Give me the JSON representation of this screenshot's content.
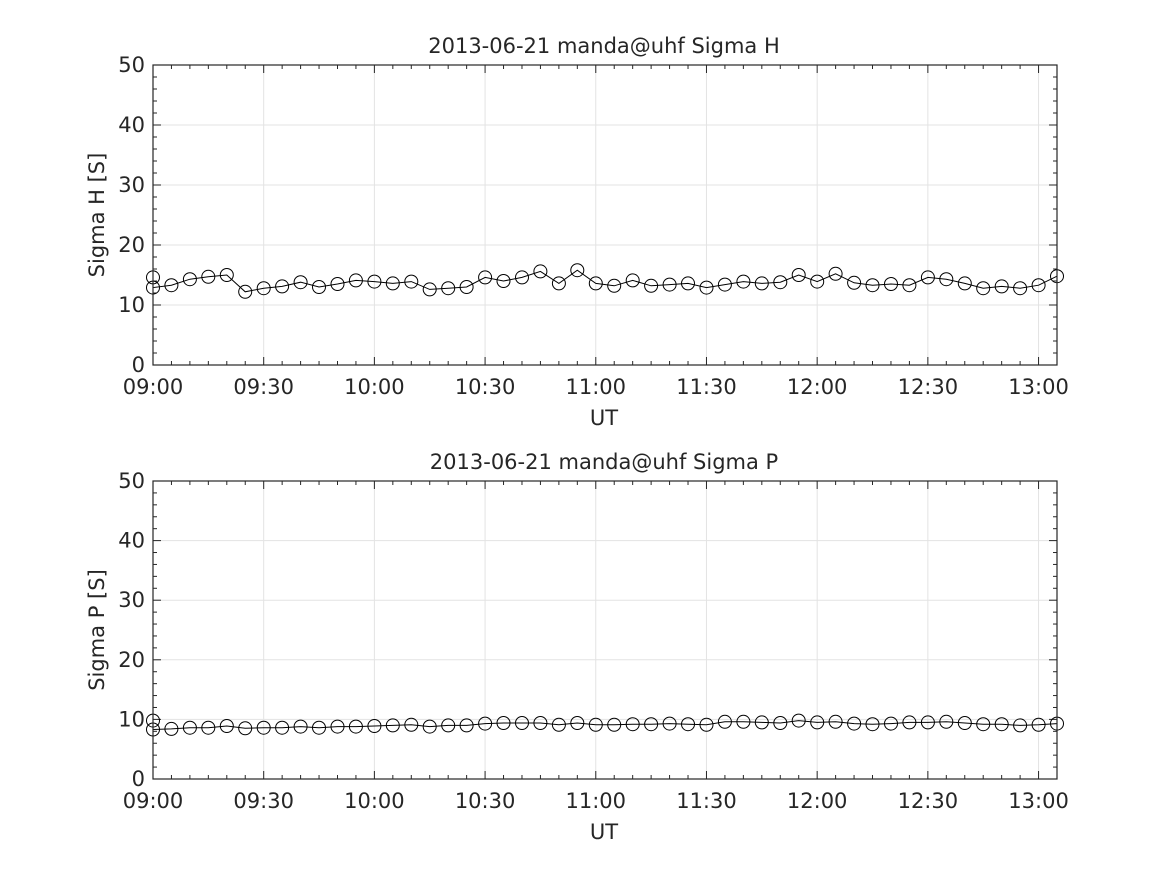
{
  "chart_data": [
    {
      "type": "line",
      "title": "2013-06-21  manda@uhf Sigma H",
      "xlabel": "UT",
      "ylabel": "Sigma H [S]",
      "xlim": [
        "09:00",
        "13:05"
      ],
      "ylim": [
        0,
        50
      ],
      "grid": true,
      "x_tick_labels": [
        "09:00",
        "09:30",
        "10:00",
        "10:30",
        "11:00",
        "11:30",
        "12:00",
        "12:30",
        "13:00"
      ],
      "y_tick_labels": [
        "0",
        "10",
        "20",
        "30",
        "40",
        "50"
      ],
      "marker": "open-circle",
      "color": "#000000",
      "x": [
        "09:00",
        "09:00",
        "09:05",
        "09:10",
        "09:15",
        "09:20",
        "09:25",
        "09:30",
        "09:35",
        "09:40",
        "09:45",
        "09:50",
        "09:55",
        "10:00",
        "10:05",
        "10:10",
        "10:15",
        "10:20",
        "10:25",
        "10:30",
        "10:35",
        "10:40",
        "10:45",
        "10:50",
        "10:55",
        "11:00",
        "11:05",
        "11:10",
        "11:15",
        "11:20",
        "11:25",
        "11:30",
        "11:35",
        "11:40",
        "11:45",
        "11:50",
        "11:55",
        "12:00",
        "12:05",
        "12:10",
        "12:15",
        "12:20",
        "12:25",
        "12:30",
        "12:35",
        "12:40",
        "12:45",
        "12:50",
        "12:55",
        "13:00",
        "13:05"
      ],
      "values": [
        14.6,
        12.9,
        13.3,
        14.3,
        14.7,
        15.0,
        12.2,
        12.8,
        13.1,
        13.8,
        13.0,
        13.5,
        14.1,
        13.9,
        13.6,
        13.9,
        12.6,
        12.8,
        13.0,
        14.6,
        14.0,
        14.6,
        15.6,
        13.6,
        15.8,
        13.6,
        13.2,
        14.1,
        13.2,
        13.4,
        13.6,
        12.9,
        13.4,
        13.9,
        13.6,
        13.8,
        15.0,
        13.9,
        15.2,
        13.7,
        13.3,
        13.5,
        13.3,
        14.6,
        14.3,
        13.6,
        12.8,
        13.1,
        12.8,
        13.3,
        14.8
      ]
    },
    {
      "type": "line",
      "title": "2013-06-21  manda@uhf Sigma P",
      "xlabel": "UT",
      "ylabel": "Sigma P [S]",
      "xlim": [
        "09:00",
        "13:05"
      ],
      "ylim": [
        0,
        50
      ],
      "grid": true,
      "x_tick_labels": [
        "09:00",
        "09:30",
        "10:00",
        "10:30",
        "11:00",
        "11:30",
        "12:00",
        "12:30",
        "13:00"
      ],
      "y_tick_labels": [
        "0",
        "10",
        "20",
        "30",
        "40",
        "50"
      ],
      "marker": "open-circle",
      "color": "#000000",
      "x": [
        "09:00",
        "09:00",
        "09:05",
        "09:10",
        "09:15",
        "09:20",
        "09:25",
        "09:30",
        "09:35",
        "09:40",
        "09:45",
        "09:50",
        "09:55",
        "10:00",
        "10:05",
        "10:10",
        "10:15",
        "10:20",
        "10:25",
        "10:30",
        "10:35",
        "10:40",
        "10:45",
        "10:50",
        "10:55",
        "11:00",
        "11:05",
        "11:10",
        "11:15",
        "11:20",
        "11:25",
        "11:30",
        "11:35",
        "11:40",
        "11:45",
        "11:50",
        "11:55",
        "12:00",
        "12:05",
        "12:10",
        "12:15",
        "12:20",
        "12:25",
        "12:30",
        "12:35",
        "12:40",
        "12:45",
        "12:50",
        "12:55",
        "13:00",
        "13:05"
      ],
      "values": [
        9.8,
        8.3,
        8.4,
        8.6,
        8.6,
        8.9,
        8.5,
        8.6,
        8.6,
        8.8,
        8.6,
        8.8,
        8.8,
        8.9,
        9.0,
        9.1,
        8.8,
        9.0,
        9.0,
        9.3,
        9.4,
        9.4,
        9.4,
        9.1,
        9.4,
        9.1,
        9.1,
        9.2,
        9.2,
        9.3,
        9.2,
        9.1,
        9.6,
        9.6,
        9.5,
        9.4,
        9.8,
        9.5,
        9.6,
        9.3,
        9.2,
        9.3,
        9.5,
        9.5,
        9.6,
        9.4,
        9.2,
        9.2,
        9.0,
        9.1,
        9.3
      ]
    }
  ]
}
